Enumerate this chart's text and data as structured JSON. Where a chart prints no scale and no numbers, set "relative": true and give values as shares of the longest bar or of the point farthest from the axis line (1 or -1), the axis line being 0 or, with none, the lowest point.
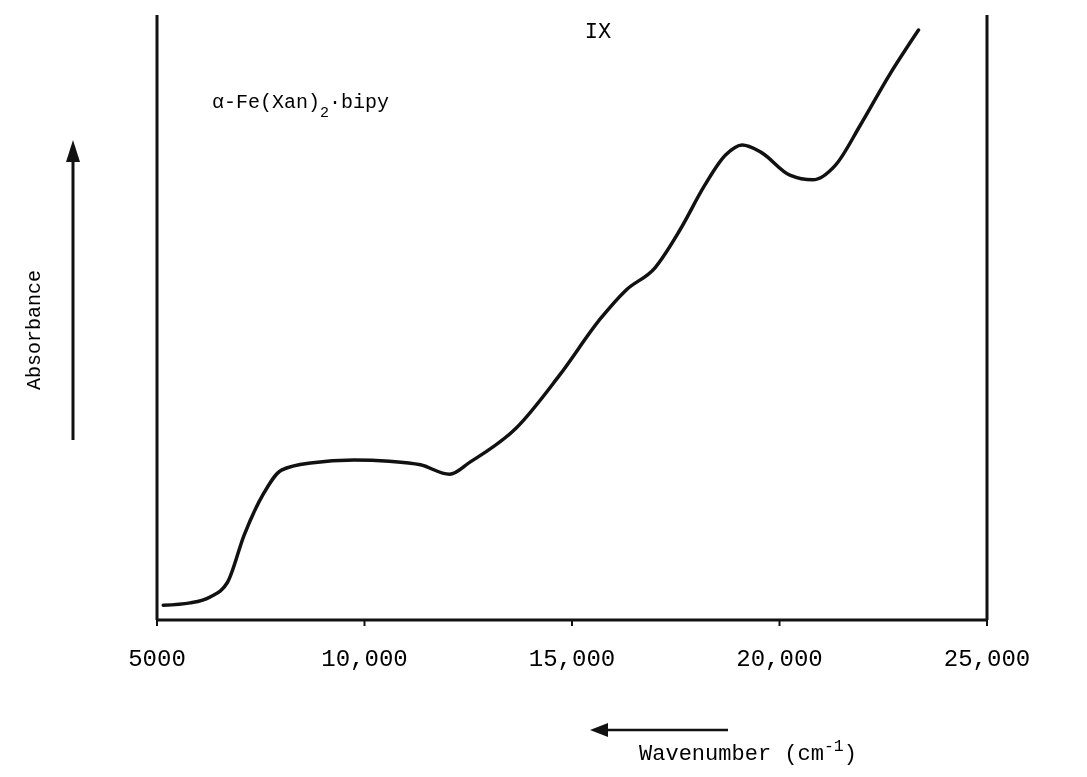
{
  "chart_data": {
    "type": "line",
    "title": "IX",
    "xlabel": "Wavenumber (cm$^{-1}$)",
    "ylabel": "Absorbance",
    "relative": true,
    "xlim": [
      5000,
      25000
    ],
    "xticks": [
      5000,
      {
        "value": 10000,
        "label": "10,000"
      },
      {
        "value": 15000,
        "label": "15,000"
      },
      {
        "value": 20000,
        "label": "20,000"
      },
      {
        "value": 25000,
        "label": "25,000"
      }
    ],
    "annotations": [
      "α-Fe(Xan)$_{2}$·bipy"
    ],
    "series": [
      {
        "color": "#111111",
        "x": [
          5150,
          5800,
          6280,
          6700,
          7100,
          7550,
          8000,
          8700,
          9750,
          10600,
          11350,
          12050,
          12550,
          13650,
          14700,
          15700,
          16300,
          17000,
          17600,
          18200,
          18700,
          19100,
          19550,
          20250,
          20800,
          21350,
          21950,
          22650,
          23350
        ],
        "values": [
          0.025,
          0.029,
          0.039,
          0.064,
          0.144,
          0.212,
          0.254,
          0.266,
          0.271,
          0.269,
          0.263,
          0.247,
          0.268,
          0.325,
          0.415,
          0.512,
          0.559,
          0.597,
          0.661,
          0.737,
          0.788,
          0.805,
          0.793,
          0.754,
          0.746,
          0.771,
          0.839,
          0.924,
          1.0
        ]
      }
    ]
  }
}
